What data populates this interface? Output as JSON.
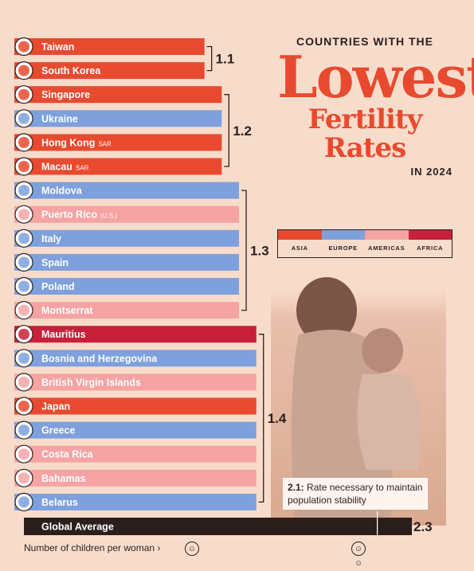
{
  "title": {
    "line1": "COUNTRIES WITH THE",
    "line2": "Lowest",
    "line3": "Fertility Rates",
    "line4": "IN 2024"
  },
  "legend": [
    {
      "label": "ASIA",
      "color": "#e84a2f"
    },
    {
      "label": "EUROPE",
      "color": "#7ea0dc"
    },
    {
      "label": "AMERICAS",
      "color": "#f5a3a3"
    },
    {
      "label": "AFRICA",
      "color": "#c8203a"
    }
  ],
  "note": {
    "bold": "2.1:",
    "text": " Rate necessary to maintain population stability"
  },
  "axis_label": "Number of children per woman ›",
  "icons": [
    "child-icon",
    "couple-icon"
  ],
  "chart_data": {
    "type": "bar",
    "xlim": [
      0,
      2.3
    ],
    "categories": [
      "Taiwan",
      "South Korea",
      "Singapore",
      "Ukraine",
      "Hong Kong",
      "Macau",
      "Moldova",
      "Puerto Rico",
      "Italy",
      "Spain",
      "Poland",
      "Montserrat",
      "Mauritius",
      "Bosnia and Herzegovina",
      "British Virgin Islands",
      "Japan",
      "Greece",
      "Costa Rica",
      "Bahamas",
      "Belarus"
    ],
    "suffixes": [
      "",
      "",
      "",
      "",
      "SAR",
      "SAR",
      "",
      "(U.S.)",
      "",
      "",
      "",
      "",
      "",
      "",
      "",
      "",
      "",
      "",
      "",
      ""
    ],
    "regions": [
      "Asia",
      "Asia",
      "Asia",
      "Europe",
      "Asia",
      "Asia",
      "Europe",
      "Americas",
      "Europe",
      "Europe",
      "Europe",
      "Americas",
      "Africa",
      "Europe",
      "Americas",
      "Asia",
      "Europe",
      "Americas",
      "Americas",
      "Europe"
    ],
    "values": [
      1.1,
      1.1,
      1.2,
      1.2,
      1.2,
      1.2,
      1.3,
      1.3,
      1.3,
      1.3,
      1.3,
      1.3,
      1.4,
      1.4,
      1.4,
      1.4,
      1.4,
      1.4,
      1.4,
      1.4
    ],
    "groups": [
      {
        "label": "1.1",
        "start": 0,
        "end": 1
      },
      {
        "label": "1.2",
        "start": 2,
        "end": 5
      },
      {
        "label": "1.3",
        "start": 6,
        "end": 11
      },
      {
        "label": "1.4",
        "start": 12,
        "end": 19
      }
    ],
    "global_average": {
      "label": "Global Average",
      "value": 2.3,
      "value_label": "2.3"
    },
    "reference": {
      "value": 2.1
    }
  }
}
